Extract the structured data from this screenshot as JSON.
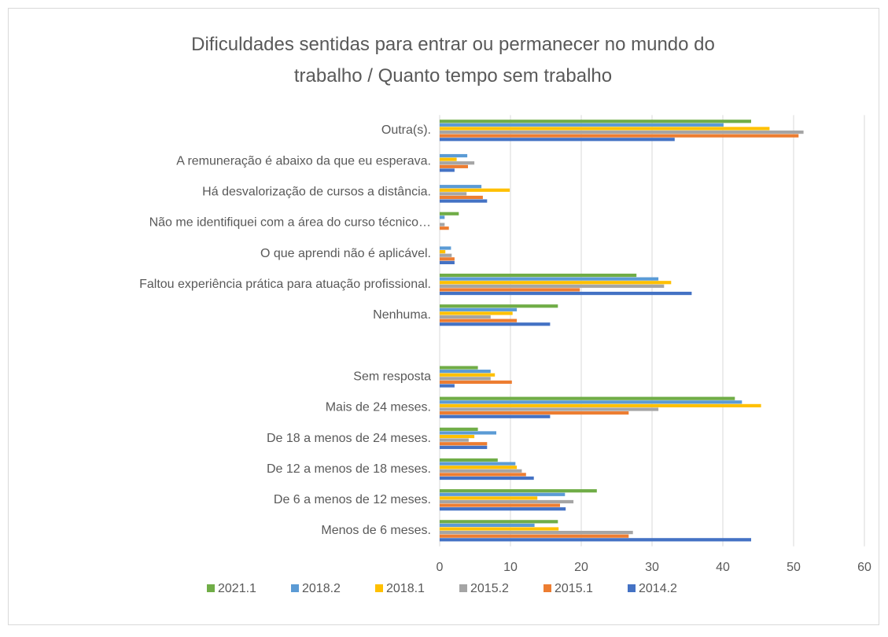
{
  "chart_data": {
    "type": "bar",
    "orientation": "horizontal",
    "title": "Dificuldades sentidas para entrar ou permanecer no mundo do trabalho / Quanto tempo sem trabalho",
    "categories": [
      "Outra(s).",
      "A remuneração é abaixo da que eu esperava.",
      "Há desvalorização de cursos a distância.",
      "Não me identifiquei com a área do curso técnico…",
      "O que aprendi não é aplicável.",
      "Faltou experiência prática para atuação profissional.",
      "Nenhuma.",
      null,
      "Sem resposta",
      "Mais de 24 meses.",
      "De 18 a menos de 24 meses.",
      "De 12 a menos de 18 meses.",
      "De 6 a menos de 12 meses.",
      "Menos de 6 meses."
    ],
    "series": [
      {
        "name": "2021.1",
        "color": "#70ad47",
        "values": [
          44,
          0,
          0,
          2.7,
          0,
          27.8,
          16.7,
          null,
          5.4,
          41.7,
          5.4,
          8.2,
          22.2,
          16.7
        ]
      },
      {
        "name": "2018.2",
        "color": "#5b9bd5",
        "values": [
          40.1,
          3.9,
          5.9,
          0.7,
          1.6,
          30.9,
          10.9,
          null,
          7.2,
          42.7,
          8,
          10.7,
          17.7,
          13.4
        ]
      },
      {
        "name": "2018.1",
        "color": "#ffc000",
        "values": [
          46.6,
          2.4,
          9.9,
          0,
          0.8,
          32.7,
          10.3,
          null,
          7.8,
          45.4,
          4.9,
          10.9,
          13.8,
          16.8
        ]
      },
      {
        "name": "2015.2",
        "color": "#a5a5a5",
        "values": [
          51.4,
          4.9,
          3.8,
          0.7,
          1.7,
          31.7,
          7.2,
          null,
          7.2,
          30.9,
          4.1,
          11.6,
          18.9,
          27.3
        ]
      },
      {
        "name": "2015.1",
        "color": "#ed7d31",
        "values": [
          50.7,
          4,
          6.1,
          1.3,
          2.1,
          19.8,
          10.9,
          null,
          10.2,
          26.7,
          6.7,
          12.2,
          17,
          26.7
        ]
      },
      {
        "name": "2014.2",
        "color": "#4472c4",
        "values": [
          33.2,
          2.1,
          6.7,
          0,
          2.1,
          35.6,
          15.6,
          null,
          2.1,
          15.6,
          6.7,
          13.3,
          17.8,
          44
        ]
      }
    ],
    "xlim": [
      0,
      60
    ],
    "xticks": [
      0,
      10,
      20,
      30,
      40,
      50,
      60
    ],
    "grid": true,
    "legend": "bottom"
  }
}
